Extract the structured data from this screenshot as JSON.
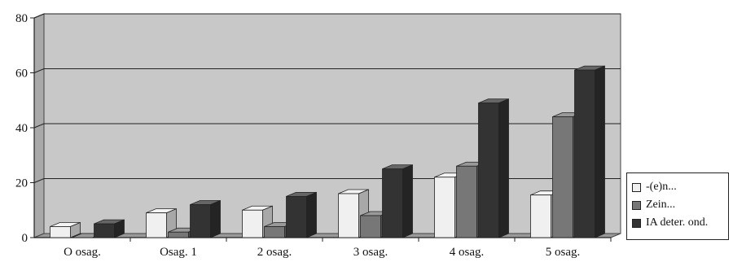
{
  "chart_data": {
    "type": "bar",
    "categories": [
      "O osag.",
      "Osag. 1",
      "2 osag.",
      "3 osag.",
      "4 osag.",
      "5 osag."
    ],
    "series": [
      {
        "name": "-(e)n...",
        "values": [
          4,
          9,
          10,
          16,
          22,
          15.5
        ],
        "color": "#f0f0f0"
      },
      {
        "name": "Zein...",
        "values": [
          0,
          2,
          4,
          8,
          26,
          44
        ],
        "color": "#777777"
      },
      {
        "name": "IA deter. ond.",
        "values": [
          5,
          12,
          15,
          25,
          49,
          61
        ],
        "color": "#333333"
      }
    ],
    "ylim": [
      0,
      80
    ],
    "yticks": [
      0,
      20,
      40,
      60,
      80
    ],
    "grid": true,
    "legend": "right",
    "plot_background": "#c8c8c8",
    "title": "",
    "xlabel": "",
    "ylabel": ""
  }
}
